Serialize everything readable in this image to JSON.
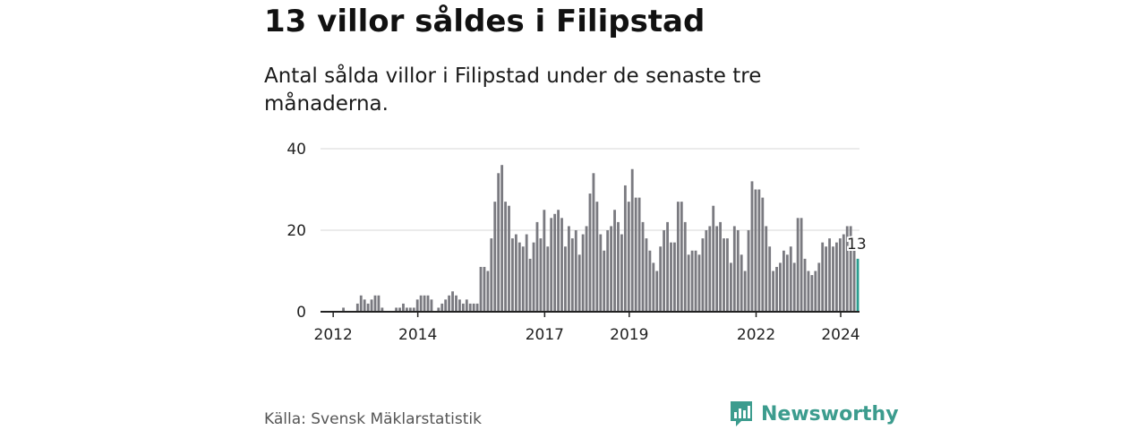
{
  "title": "13 villor såldes i Filipstad",
  "subtitle": "Antal sålda villor i Filipstad under de senaste tre månaderna.",
  "source": "Källa: Svensk Mäklarstatistik",
  "brand": {
    "name": "Newsworthy",
    "icon": "bar-chart-logo-icon"
  },
  "colors": {
    "bar": "#7a7a80",
    "highlight": "#2a9d8f",
    "brand": "#3c9c8e"
  },
  "chart_data": {
    "type": "bar",
    "title": "13 villor såldes i Filipstad",
    "xlabel": "",
    "ylabel": "",
    "ylim": [
      0,
      40
    ],
    "yticks": [
      0,
      20,
      40
    ],
    "xticks": [
      {
        "label": "2012",
        "x": 2012.0
      },
      {
        "label": "2014",
        "x": 2014.0
      },
      {
        "label": "2017",
        "x": 2017.0
      },
      {
        "label": "2019",
        "x": 2019.0
      },
      {
        "label": "2022",
        "x": 2022.0
      },
      {
        "label": "2024",
        "x": 2024.0
      }
    ],
    "x_start": 2011.7,
    "x_step": 0.0833,
    "values": [
      0,
      0,
      0,
      0,
      0,
      0,
      1,
      0,
      0,
      0,
      2,
      4,
      3,
      2,
      3,
      4,
      4,
      1,
      0,
      0,
      0,
      1,
      1,
      2,
      1,
      1,
      1,
      3,
      4,
      4,
      4,
      3,
      0,
      1,
      2,
      3,
      4,
      5,
      4,
      3,
      2,
      3,
      2,
      2,
      2,
      11,
      11,
      10,
      18,
      27,
      34,
      36,
      27,
      26,
      18,
      19,
      17,
      16,
      19,
      13,
      17,
      22,
      18,
      25,
      16,
      23,
      24,
      25,
      23,
      16,
      21,
      18,
      20,
      14,
      19,
      21,
      29,
      34,
      27,
      19,
      15,
      20,
      21,
      25,
      22,
      19,
      31,
      27,
      35,
      28,
      28,
      22,
      18,
      15,
      12,
      10,
      16,
      20,
      22,
      17,
      17,
      27,
      27,
      22,
      14,
      15,
      15,
      14,
      18,
      20,
      21,
      26,
      21,
      22,
      18,
      18,
      12,
      21,
      20,
      14,
      10,
      20,
      32,
      30,
      30,
      28,
      21,
      16,
      10,
      11,
      12,
      15,
      14,
      16,
      12,
      23,
      23,
      13,
      10,
      9,
      10,
      12,
      17,
      16,
      18,
      16,
      17,
      18,
      19,
      21,
      21,
      15,
      13
    ],
    "highlight_index": 152,
    "annotation": {
      "label": "13",
      "value": 13
    }
  }
}
